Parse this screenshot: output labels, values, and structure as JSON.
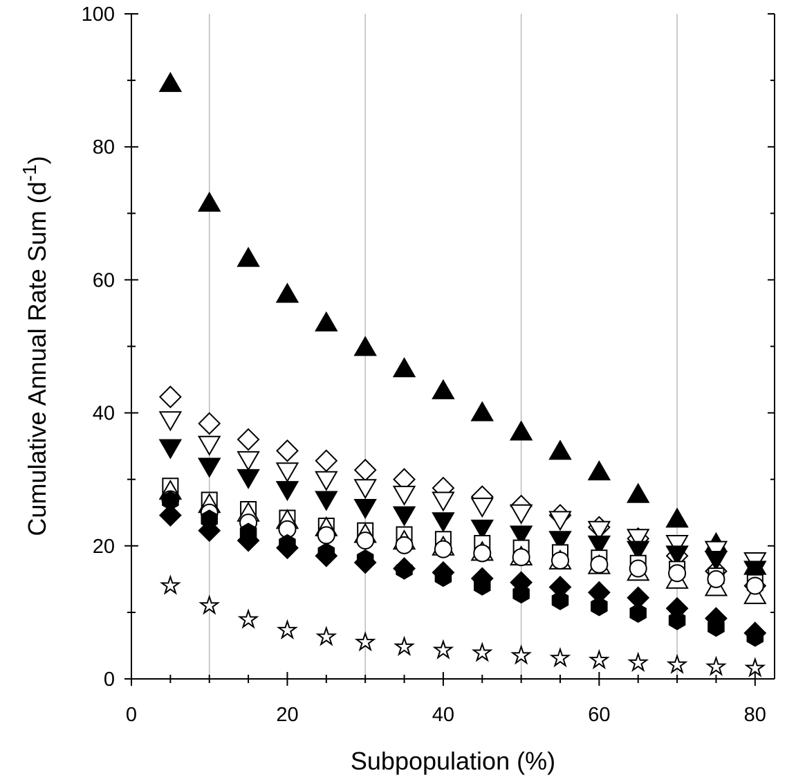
{
  "chart_data": {
    "type": "scatter",
    "xlabel": "Subpopulation (%)",
    "ylabel": {
      "text": "Cumulative Annual Rate Sum (d",
      "superscript": "-1",
      "suffix": ")"
    },
    "xlim": [
      0,
      82.5
    ],
    "ylim": [
      0,
      100
    ],
    "xticks": [
      0,
      20,
      40,
      60,
      80
    ],
    "yticks": [
      0,
      20,
      40,
      60,
      80,
      100
    ],
    "xminorticks": [
      5,
      10,
      15,
      25,
      30,
      35,
      45,
      50,
      55,
      65,
      70,
      75
    ],
    "yminorticks": [
      10,
      30,
      50,
      70,
      90
    ],
    "xgrid": [
      10,
      30,
      50,
      70
    ],
    "x": [
      5,
      10,
      15,
      20,
      25,
      30,
      35,
      40,
      45,
      50,
      55,
      60,
      65,
      70,
      75,
      80
    ],
    "series": [
      {
        "marker": "triangle-up",
        "filled": true,
        "color": "#000000",
        "values": [
          89.5,
          71.5,
          63.2,
          57.8,
          53.5,
          49.8,
          46.6,
          43.3,
          40.0,
          37.1,
          34.2,
          31.1,
          27.7,
          24.0,
          20.3,
          16.9
        ]
      },
      {
        "marker": "diamond",
        "filled": false,
        "color": "#000000",
        "values": [
          42.4,
          38.4,
          36.0,
          34.3,
          32.8,
          31.4,
          30.0,
          28.7,
          27.4,
          26.0,
          24.6,
          22.8,
          21.1,
          18.5,
          16.2,
          14.0
        ]
      },
      {
        "marker": "triangle-down",
        "filled": false,
        "color": "#000000",
        "values": [
          39.0,
          35.3,
          33.0,
          31.3,
          30.0,
          28.8,
          27.8,
          26.9,
          26.0,
          25.0,
          24.0,
          22.5,
          21.3,
          20.4,
          19.5,
          17.8
        ]
      },
      {
        "marker": "triangle-down",
        "filled": true,
        "color": "#000000",
        "values": [
          34.8,
          32.0,
          30.3,
          28.5,
          27.0,
          25.8,
          24.7,
          23.8,
          22.7,
          21.8,
          21.0,
          20.3,
          19.5,
          18.8,
          18.0,
          16.5
        ]
      },
      {
        "marker": "square",
        "filled": false,
        "color": "#000000",
        "values": [
          29.0,
          26.9,
          25.5,
          24.2,
          23.0,
          22.3,
          21.7,
          21.0,
          20.4,
          19.7,
          19.0,
          18.2,
          17.4,
          16.5,
          15.5,
          14.5
        ]
      },
      {
        "marker": "triangle-up",
        "filled": false,
        "color": "#000000",
        "values": [
          28.2,
          26.2,
          24.9,
          23.8,
          22.7,
          21.7,
          20.7,
          19.8,
          19.0,
          18.3,
          17.7,
          17.0,
          16.0,
          14.8,
          13.7,
          12.5
        ]
      },
      {
        "marker": "circle",
        "filled": false,
        "color": "#000000",
        "values": [
          27.0,
          25.0,
          23.5,
          22.5,
          21.6,
          20.8,
          20.1,
          19.5,
          18.9,
          18.3,
          17.8,
          17.2,
          16.6,
          15.9,
          15.0,
          14.0
        ]
      },
      {
        "marker": "hexagon",
        "filled": true,
        "color": "#000000",
        "values": [
          26.8,
          24.0,
          22.0,
          20.3,
          19.0,
          18.0,
          16.4,
          15.3,
          14.0,
          12.8,
          11.8,
          10.9,
          9.9,
          8.8,
          7.8,
          6.3
        ]
      },
      {
        "marker": "diamond",
        "filled": true,
        "color": "#000000",
        "values": [
          24.6,
          22.3,
          20.8,
          19.7,
          18.5,
          17.5,
          16.6,
          16.0,
          15.1,
          14.5,
          13.8,
          13.0,
          12.2,
          10.6,
          9.1,
          6.9
        ]
      },
      {
        "marker": "star",
        "filled": false,
        "color": "#000000",
        "values": [
          14.0,
          11.0,
          8.9,
          7.3,
          6.3,
          5.5,
          4.8,
          4.3,
          3.9,
          3.5,
          3.1,
          2.8,
          2.4,
          2.1,
          1.8,
          1.6
        ]
      }
    ]
  }
}
